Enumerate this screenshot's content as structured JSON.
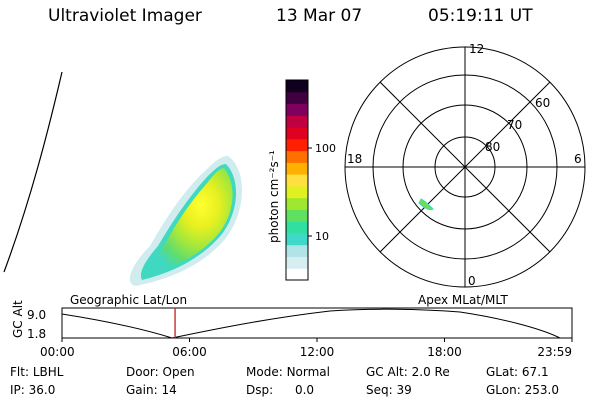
{
  "header": {
    "instrument": "Ultraviolet Imager",
    "date": "13 Mar 07",
    "time": "05:19:11 UT"
  },
  "colorbar": {
    "unit_label": "photon cm⁻²s⁻¹",
    "ticks": [
      "100",
      "10"
    ],
    "colors": [
      "#ffffff",
      "#d8eef0",
      "#b0e4e6",
      "#40d8c8",
      "#30e0a0",
      "#60e060",
      "#a0e830",
      "#e0f020",
      "#ffe040",
      "#ffb000",
      "#ff7000",
      "#ff2000",
      "#e00020",
      "#c00040",
      "#800060",
      "#400040",
      "#100020"
    ]
  },
  "polar": {
    "mlt_labels": {
      "top": "12",
      "left": "18",
      "right": "6",
      "bottom": "0"
    },
    "lat_labels": [
      "60",
      "70",
      "80"
    ]
  },
  "timeline": {
    "axis_label": "GC Alt",
    "y_max": "9.0",
    "y_min": "1.8",
    "left_caption": "Geographic Lat/Lon",
    "right_caption": "Apex MLat/MLT",
    "ticks": [
      "00:00",
      "06:00",
      "12:00",
      "18:00",
      "23:59"
    ],
    "marker_time_hours": 5.32,
    "marker_color": "#c03030"
  },
  "info": {
    "filter": {
      "label": "Flt:",
      "value": "LBHL"
    },
    "door": {
      "label": "Door:",
      "value": "Open"
    },
    "mode": {
      "label": "Mode:",
      "value": "Normal"
    },
    "gc_alt": {
      "label": "GC Alt:",
      "value": "2.0 Re"
    },
    "glat": {
      "label": "GLat:",
      "value": "67.1"
    },
    "ip": {
      "label": "IP:",
      "value": "36.0"
    },
    "gain": {
      "label": "Gain:",
      "value": "14"
    },
    "dsp": {
      "label": "Dsp:",
      "value": "0.0"
    },
    "seq": {
      "label": "Seq:",
      "value": "39"
    },
    "glon": {
      "label": "GLon:",
      "value": "253.0"
    }
  }
}
